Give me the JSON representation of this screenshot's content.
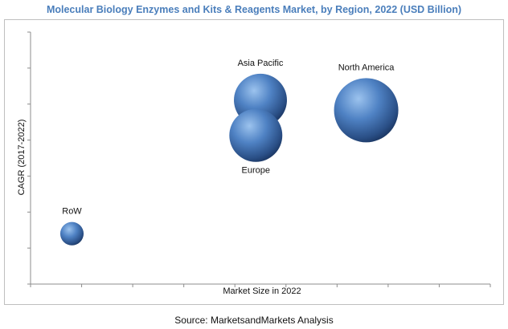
{
  "chart_data": {
    "type": "scatter",
    "title": "Molecular Biology Enzymes and Kits & Reagents Market, by Region, 2022 (USD Billion)",
    "xlabel": "Market Size in 2022",
    "ylabel": "CAGR (2017-2022)",
    "x_ticks_shown": false,
    "y_ticks_shown": false,
    "xlim": [
      0,
      10
    ],
    "ylim": [
      0,
      10
    ],
    "grid": false,
    "legend": "none",
    "bubble_color": "#3f6fb3",
    "series": [
      {
        "points": [
          {
            "label": "Asia Pacific",
            "x": 5.0,
            "y": 7.3,
            "size": 3.6
          },
          {
            "label": "North America",
            "x": 7.3,
            "y": 6.9,
            "size": 5.3
          },
          {
            "label": "Europe",
            "x": 4.9,
            "y": 5.9,
            "size": 3.6
          },
          {
            "label": "RoW",
            "x": 0.9,
            "y": 2.0,
            "size": 0.7
          }
        ]
      }
    ]
  },
  "footer": {
    "source": "Source: MarketsandMarkets Analysis"
  }
}
